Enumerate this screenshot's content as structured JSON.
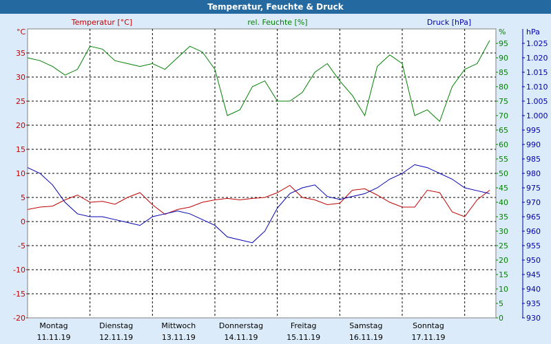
{
  "title": "Temperatur, Feuchte & Druck",
  "chart_data": {
    "type": "line",
    "title": "Temperatur, Feuchte & Druck",
    "grid": true,
    "axes": {
      "temperature": {
        "label": "Temperatur [°C]",
        "unit": "°C",
        "range": [
          -20,
          40
        ],
        "ticks": [
          -20,
          -15,
          -10,
          -5,
          0,
          5,
          10,
          15,
          20,
          25,
          30,
          35
        ]
      },
      "humidity": {
        "label": "rel. Feuchte [%]",
        "unit": "%",
        "range": [
          0,
          100
        ],
        "ticks": [
          0,
          5,
          10,
          15,
          20,
          25,
          30,
          35,
          40,
          45,
          50,
          55,
          60,
          65,
          70,
          75,
          80,
          85,
          90,
          95
        ]
      },
      "pressure": {
        "label": "Druck [hPa]",
        "unit": "hPa",
        "range": [
          930,
          1030
        ],
        "ticks": [
          "930",
          "935",
          "940",
          "945",
          "950",
          "955",
          "960",
          "965",
          "970",
          "975",
          "980",
          "985",
          "990",
          "995",
          "1.000",
          "1.005",
          "1.010",
          "1.015",
          "1.020",
          "1.025"
        ]
      }
    },
    "x_range": [
      0,
      7.5
    ],
    "days": [
      {
        "name": "Montag",
        "date": "11.11.19"
      },
      {
        "name": "Dienstag",
        "date": "12.11.19"
      },
      {
        "name": "Mittwoch",
        "date": "13.11.19"
      },
      {
        "name": "Donnerstag",
        "date": "14.11.19"
      },
      {
        "name": "Freitag",
        "date": "15.11.19"
      },
      {
        "name": "Samstag",
        "date": "16.11.19"
      },
      {
        "name": "Sonntag",
        "date": "17.11.19"
      }
    ],
    "colors": {
      "temperature": "#c00000",
      "humidity": "#008000",
      "pressure": "#0000b0",
      "title_bar": "#24699f",
      "background": "#dcebf9"
    },
    "series": [
      {
        "name": "Temperatur [°C]",
        "axis": "temperature",
        "x": [
          0,
          0.2,
          0.4,
          0.6,
          0.8,
          1.0,
          1.2,
          1.4,
          1.6,
          1.8,
          2.0,
          2.2,
          2.4,
          2.6,
          2.8,
          3.0,
          3.2,
          3.4,
          3.6,
          3.8,
          4.0,
          4.2,
          4.4,
          4.6,
          4.8,
          5.0,
          5.2,
          5.4,
          5.6,
          5.8,
          6.0,
          6.2,
          6.4,
          6.6,
          6.8,
          7.0,
          7.2,
          7.4
        ],
        "y": [
          2.5,
          3,
          3.2,
          4.5,
          5.5,
          4,
          4.2,
          3.6,
          5,
          6,
          3.5,
          1.5,
          2.5,
          3,
          4,
          4.5,
          4.8,
          4.5,
          4.8,
          5,
          6,
          7.5,
          5,
          4.5,
          3.5,
          3.8,
          6.5,
          6.8,
          5.5,
          4,
          3,
          3,
          6.5,
          6,
          2,
          1,
          4.5,
          6.5
        ]
      },
      {
        "name": "rel. Feuchte [%]",
        "axis": "humidity",
        "x": [
          0,
          0.2,
          0.4,
          0.6,
          0.8,
          1.0,
          1.2,
          1.4,
          1.6,
          1.8,
          2.0,
          2.2,
          2.4,
          2.6,
          2.8,
          3.0,
          3.2,
          3.4,
          3.6,
          3.8,
          4.0,
          4.2,
          4.4,
          4.6,
          4.8,
          5.0,
          5.2,
          5.4,
          5.6,
          5.8,
          6.0,
          6.2,
          6.4,
          6.6,
          6.8,
          7.0,
          7.2,
          7.4
        ],
        "y": [
          90,
          89,
          87,
          84,
          86,
          94,
          93,
          89,
          88,
          87,
          88,
          86,
          90,
          94,
          92,
          86,
          70,
          72,
          80,
          82,
          75,
          75,
          78,
          85,
          88,
          82,
          77,
          70,
          87,
          91,
          88,
          70,
          72,
          68,
          80,
          86,
          88,
          96
        ]
      },
      {
        "name": "Druck [hPa]",
        "axis": "pressure",
        "x": [
          0,
          0.2,
          0.4,
          0.6,
          0.8,
          1.0,
          1.2,
          1.4,
          1.6,
          1.8,
          2.0,
          2.2,
          2.4,
          2.6,
          2.8,
          3.0,
          3.2,
          3.4,
          3.6,
          3.8,
          4.0,
          4.2,
          4.4,
          4.6,
          4.8,
          5.0,
          5.2,
          5.4,
          5.6,
          5.8,
          6.0,
          6.2,
          6.4,
          6.6,
          6.8,
          7.0,
          7.2,
          7.4
        ],
        "y": [
          982,
          980,
          976,
          970,
          966,
          965,
          965,
          964,
          963,
          962,
          965,
          966,
          967,
          966,
          964,
          962,
          958,
          957,
          956,
          960,
          968,
          973,
          975,
          976,
          972,
          971,
          972,
          973,
          975,
          978,
          980,
          983,
          982,
          980,
          978,
          975,
          974,
          973
        ]
      }
    ]
  }
}
